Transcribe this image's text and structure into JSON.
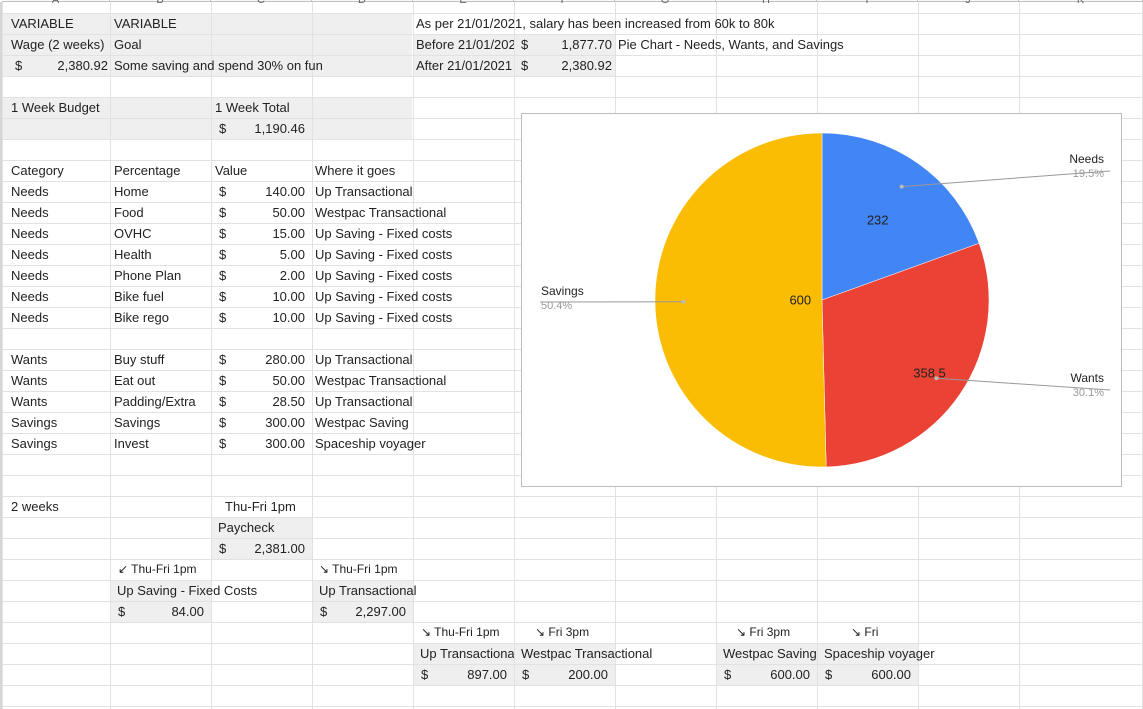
{
  "columns": [
    "A",
    "B",
    "C",
    "D",
    "E",
    "F",
    "G",
    "H",
    "I",
    "J",
    "K"
  ],
  "header": {
    "a1": "VARIABLE",
    "b1": "VARIABLE",
    "a2": "Wage (2 weeks)",
    "b2": "Goal",
    "a3_cur": "$",
    "a3_val": "2,380.92",
    "b3": "Some saving and spend 30% on fun"
  },
  "salary": {
    "note": "As per 21/01/2021, salary has been increased from 60k to 80k",
    "before_label": "Before 21/01/2021",
    "before_cur": "$",
    "before_val": "1,877.70",
    "after_label": "After 21/01/2021",
    "after_cur": "$",
    "after_val": "2,380.92",
    "chart_label": "Pie Chart - Needs, Wants, and Savings"
  },
  "budget": {
    "title": "1 Week Budget",
    "total_label": "1 Week Total",
    "total_cur": "$",
    "total_val": "1,190.46",
    "col_category": "Category",
    "col_percentage": "Percentage",
    "col_value": "Value",
    "col_where": "Where it goes",
    "rows": [
      {
        "category": "Needs",
        "item": "Home",
        "cur": "$",
        "value": "140.00",
        "where": "Up Transactional"
      },
      {
        "category": "Needs",
        "item": "Food",
        "cur": "$",
        "value": "50.00",
        "where": "Westpac Transactional"
      },
      {
        "category": "Needs",
        "item": "OVHC",
        "cur": "$",
        "value": "15.00",
        "where": "Up Saving - Fixed costs"
      },
      {
        "category": "Needs",
        "item": "Health",
        "cur": "$",
        "value": "5.00",
        "where": "Up Saving - Fixed costs"
      },
      {
        "category": "Needs",
        "item": "Phone Plan",
        "cur": "$",
        "value": "2.00",
        "where": "Up Saving - Fixed costs"
      },
      {
        "category": "Needs",
        "item": "Bike fuel",
        "cur": "$",
        "value": "10.00",
        "where": "Up Saving - Fixed costs"
      },
      {
        "category": "Needs",
        "item": "Bike rego",
        "cur": "$",
        "value": "10.00",
        "where": "Up Saving - Fixed costs"
      },
      {
        "category": "Wants",
        "item": "Buy stuff",
        "cur": "$",
        "value": "280.00",
        "where": "Up Transactional"
      },
      {
        "category": "Wants",
        "item": "Eat out",
        "cur": "$",
        "value": "50.00",
        "where": "Westpac Transactional"
      },
      {
        "category": "Wants",
        "item": "Padding/Extra",
        "cur": "$",
        "value": "28.50",
        "where": "Up Transactional"
      },
      {
        "category": "Savings",
        "item": "Savings",
        "cur": "$",
        "value": "300.00",
        "where": "Westpac Saving"
      },
      {
        "category": "Savings",
        "item": "Invest",
        "cur": "$",
        "value": "300.00",
        "where": "Spaceship voyager"
      }
    ]
  },
  "flow": {
    "two_weeks": "2 weeks",
    "pay_time": "Thu-Fri 1pm",
    "pay_label": "Paycheck",
    "pay_cur": "$",
    "pay_val": "2,381.00",
    "fixed_time": "↙ Thu-Fri 1pm",
    "fixed_label": "Up Saving - Fixed Costs",
    "fixed_cur": "$",
    "fixed_val": "84.00",
    "trans_time": "↘ Thu-Fri 1pm",
    "trans_label": "Up Transactional",
    "trans_cur": "$",
    "trans_val": "2,297.00",
    "upt_time": "↘ Thu-Fri 1pm",
    "upt_label": "Up Transactional",
    "upt_cur": "$",
    "upt_val": "897.00",
    "wpt_time": "↘ Fri 3pm",
    "wpt_label": "Westpac Transactional",
    "wpt_cur": "$",
    "wpt_val": "200.00",
    "wps_time": "↘ Fri 3pm",
    "wps_label": "Westpac Saving",
    "wps_cur": "$",
    "wps_val": "600.00",
    "ssv_time": "↘ Fri",
    "ssv_label": "Spaceship voyager",
    "ssv_cur": "$",
    "ssv_val": "600.00"
  },
  "chart_data": {
    "type": "pie",
    "title": "",
    "slices": [
      {
        "name": "Needs",
        "value": 232,
        "percent": "19.5%",
        "color": "#4285f4"
      },
      {
        "name": "Wants",
        "value": 358.5,
        "percent": "30.1%",
        "color": "#ea4335"
      },
      {
        "name": "Savings",
        "value": 600,
        "percent": "50.4%",
        "color": "#fbbc04"
      }
    ],
    "value_labels": [
      "232",
      "358.5",
      "600"
    ]
  }
}
